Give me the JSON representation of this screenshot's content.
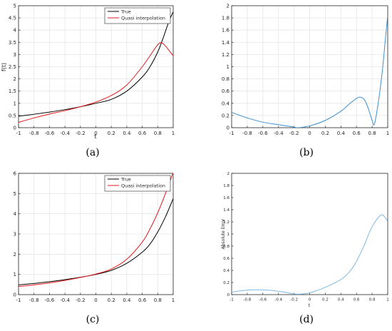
{
  "chart_data": [
    {
      "type": "line",
      "panel_label": "(a)",
      "panel_letter": "a",
      "xlabel": "t",
      "ylabel": "f(t)",
      "xlim": [
        -1,
        1
      ],
      "ylim": [
        0,
        5
      ],
      "xticks": [
        "-1",
        "-0.8",
        "-0.6",
        "-0.4",
        "-0.2",
        "0",
        "0.2",
        "0.4",
        "0.6",
        "0.8",
        "1"
      ],
      "yticks": [
        "0",
        "0.5",
        "1",
        "1.5",
        "2",
        "2.5",
        "3",
        "3.5",
        "4",
        "4.5",
        "5"
      ],
      "grid": true,
      "legend": "top-right",
      "x": [
        -1,
        -0.8,
        -0.6,
        -0.4,
        -0.2,
        0,
        0.2,
        0.4,
        0.6,
        0.7,
        0.8,
        0.85,
        0.9,
        0.95,
        1
      ],
      "series": [
        {
          "name": "True",
          "color": "#000000",
          "values": [
            0.47,
            0.55,
            0.64,
            0.74,
            0.86,
            1.0,
            1.16,
            1.5,
            2.08,
            2.5,
            3.1,
            3.5,
            3.95,
            4.4,
            4.75
          ]
        },
        {
          "name": "Quasi interpolation",
          "color": "#e41a1c",
          "values": [
            0.22,
            0.4,
            0.56,
            0.7,
            0.86,
            1.05,
            1.32,
            1.75,
            2.5,
            2.95,
            3.4,
            3.48,
            3.35,
            3.15,
            2.95
          ]
        }
      ]
    },
    {
      "type": "line",
      "panel_label": "(b)",
      "panel_letter": "b",
      "xlabel": "",
      "ylabel": "",
      "xlim": [
        -1,
        1
      ],
      "ylim": [
        0,
        2
      ],
      "xticks": [
        "-1",
        "-0.8",
        "-0.6",
        "-0.4",
        "-0.2",
        "0",
        "0.2",
        "0.4",
        "0.6",
        "0.8",
        "1"
      ],
      "yticks": [
        "0",
        "0.2",
        "0.4",
        "0.6",
        "0.8",
        "1",
        "1.2",
        "1.4",
        "1.6",
        "1.8",
        "2"
      ],
      "grid": true,
      "legend": "none",
      "x": [
        -1,
        -0.8,
        -0.6,
        -0.4,
        -0.2,
        -0.15,
        0,
        0.2,
        0.4,
        0.5,
        0.6,
        0.65,
        0.7,
        0.75,
        0.8,
        0.83,
        0.88,
        0.93,
        0.97,
        1
      ],
      "series": [
        {
          "name": "",
          "color": "#3b8fd1",
          "values": [
            0.25,
            0.16,
            0.09,
            0.05,
            0.01,
            0.0,
            0.03,
            0.12,
            0.27,
            0.38,
            0.48,
            0.5,
            0.46,
            0.32,
            0.12,
            0.06,
            0.42,
            0.92,
            1.45,
            1.84
          ]
        }
      ]
    },
    {
      "type": "line",
      "panel_label": "(c)",
      "panel_letter": "c",
      "xlabel": "",
      "ylabel": "",
      "xlim": [
        -1,
        1
      ],
      "ylim": [
        0,
        6
      ],
      "xticks": [
        "-1",
        "-0.8",
        "-0.6",
        "-0.4",
        "-0.2",
        "0",
        "0.2",
        "0.4",
        "0.6",
        "0.8",
        "1"
      ],
      "yticks": [
        "0",
        "1",
        "2",
        "3",
        "4",
        "5",
        "6"
      ],
      "grid": true,
      "legend": "top-right",
      "x": [
        -1,
        -0.8,
        -0.6,
        -0.4,
        -0.2,
        0,
        0.2,
        0.4,
        0.6,
        0.7,
        0.8,
        0.9,
        1
      ],
      "series": [
        {
          "name": "True",
          "color": "#000000",
          "values": [
            0.48,
            0.55,
            0.64,
            0.74,
            0.86,
            1.0,
            1.2,
            1.55,
            2.1,
            2.5,
            3.1,
            3.85,
            4.75
          ]
        },
        {
          "name": "Quasi interpolation",
          "color": "#e41a1c",
          "values": [
            0.4,
            0.48,
            0.58,
            0.7,
            0.85,
            1.02,
            1.27,
            1.75,
            2.6,
            3.25,
            4.05,
            5.0,
            6.05
          ]
        }
      ]
    },
    {
      "type": "line",
      "panel_label": "(d)",
      "panel_letter": "d",
      "xlabel": "t",
      "ylabel": "Absolute Error",
      "xlim": [
        -1,
        1
      ],
      "ylim": [
        0,
        2
      ],
      "xticks": [
        "-1",
        "-0.8",
        "-0.6",
        "-0.4",
        "-0.2",
        "0",
        "0.2",
        "0.4",
        "0.6",
        "0.8",
        "1"
      ],
      "yticks": [
        "0",
        "0.2",
        "0.4",
        "0.6",
        "0.8",
        "1",
        "1.2",
        "1.4",
        "1.6",
        "1.8",
        "2"
      ],
      "grid": false,
      "legend": "none",
      "x": [
        -1,
        -0.9,
        -0.8,
        -0.7,
        -0.6,
        -0.5,
        -0.4,
        -0.3,
        -0.2,
        -0.1,
        0,
        0.1,
        0.2,
        0.3,
        0.4,
        0.5,
        0.6,
        0.7,
        0.8,
        0.9,
        0.95,
        1
      ],
      "series": [
        {
          "name": "",
          "color": "#7fb8e3",
          "values": [
            0.04,
            0.06,
            0.075,
            0.08,
            0.078,
            0.07,
            0.055,
            0.035,
            0.01,
            0.01,
            0.03,
            0.07,
            0.12,
            0.18,
            0.25,
            0.36,
            0.55,
            0.82,
            1.12,
            1.3,
            1.3,
            1.2
          ]
        }
      ]
    }
  ]
}
